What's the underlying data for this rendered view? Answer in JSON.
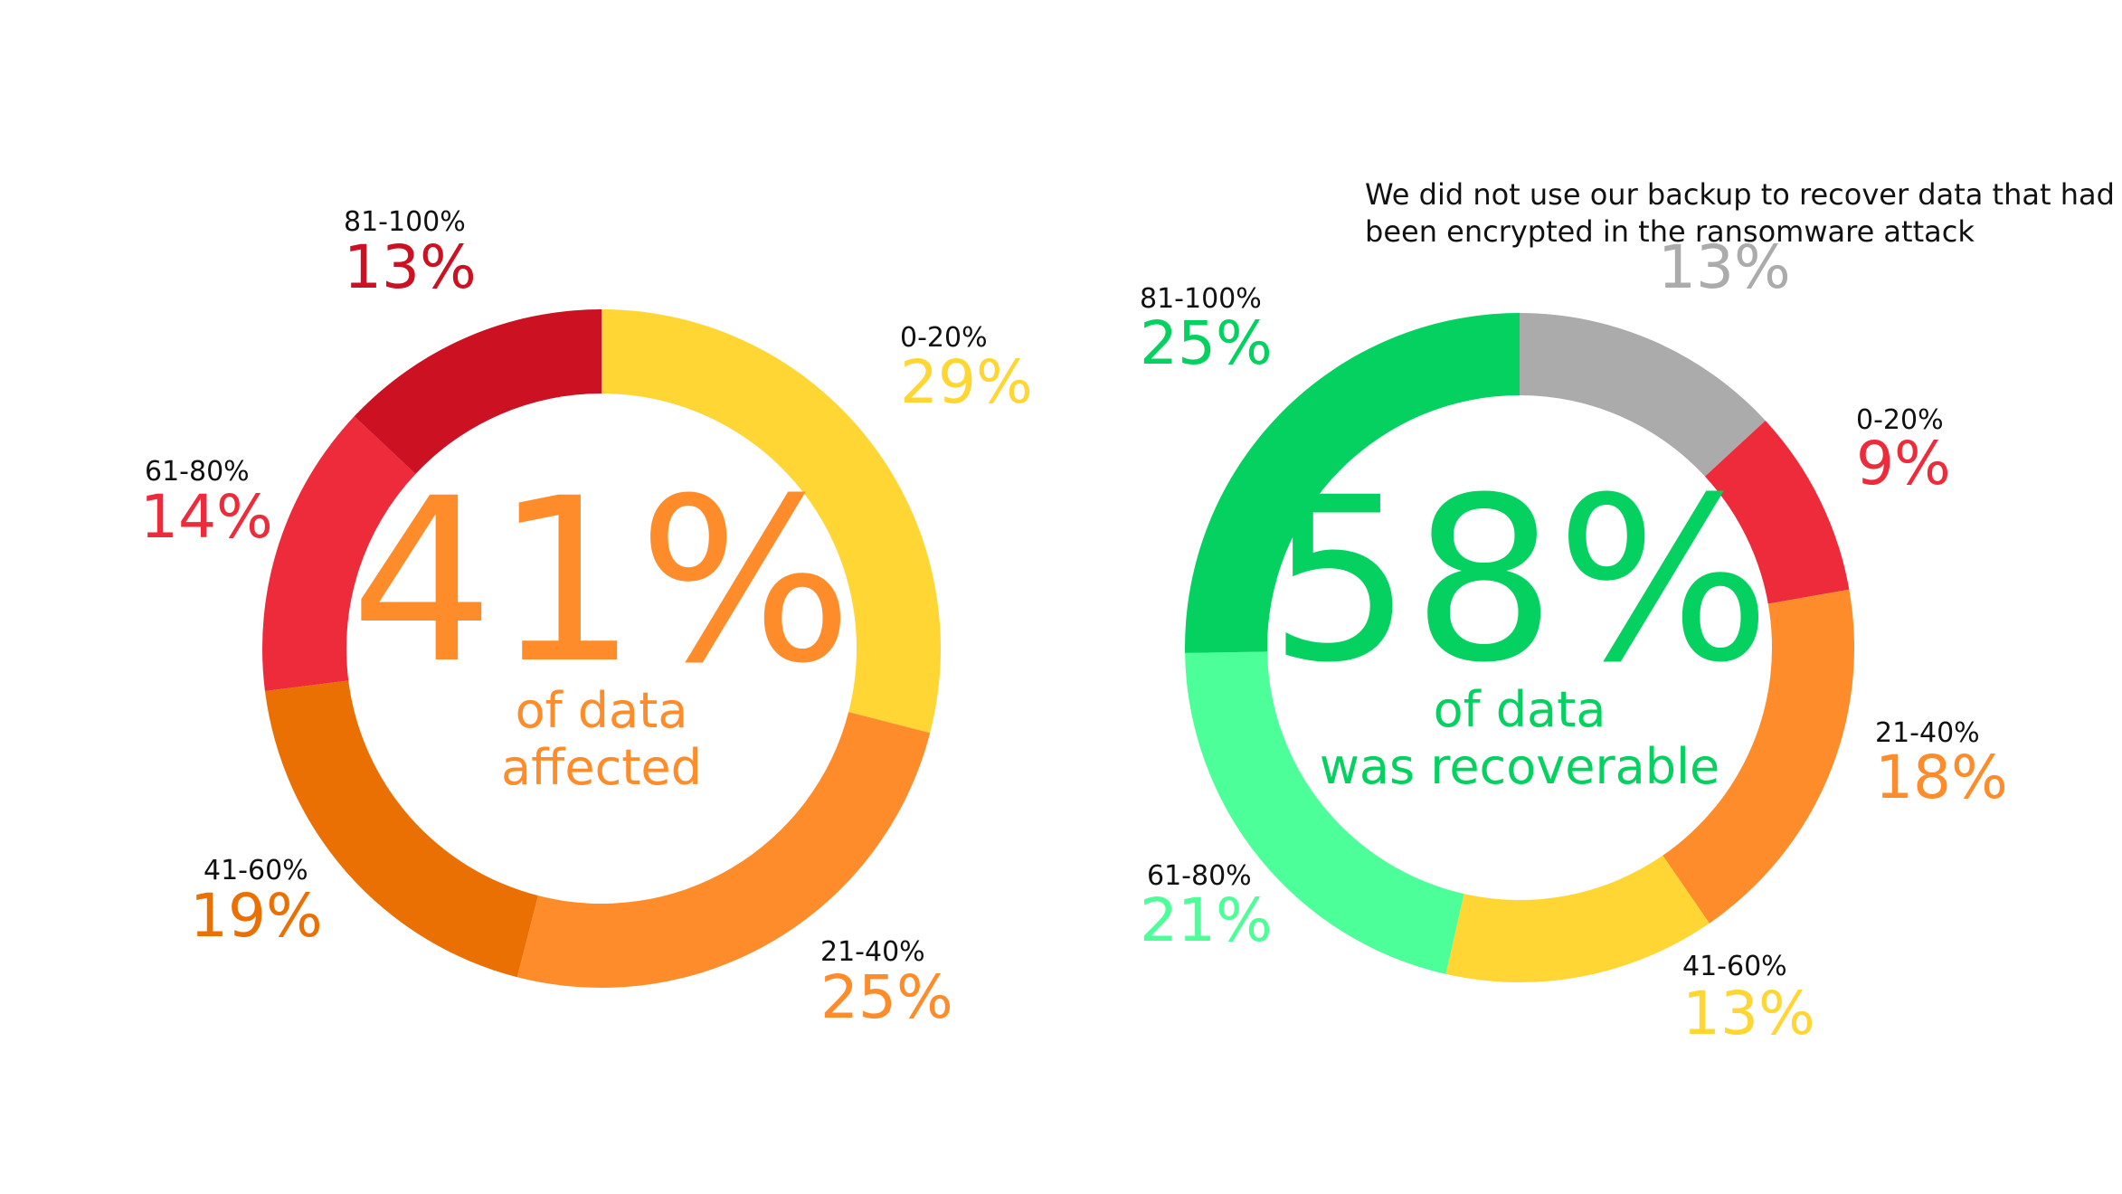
{
  "chart_data": [
    {
      "type": "donut",
      "center_value": "41%",
      "center_text": [
        "of data",
        "affected"
      ],
      "center_color": "#FF8C2A",
      "categories": [
        "0-20%",
        "21-40%",
        "41-60%",
        "61-80%",
        "81-100%"
      ],
      "values": [
        29,
        25,
        19,
        14,
        13
      ],
      "value_labels": [
        "29%",
        "25%",
        "19%",
        "14%",
        "13%"
      ],
      "colors": [
        "#FFD633",
        "#FF8C2A",
        "#EB7004",
        "#EE2B3B",
        "#CC1122"
      ]
    },
    {
      "type": "donut",
      "center_value": "58%",
      "center_text": [
        "of data",
        "was recoverable"
      ],
      "center_color": "#05D160",
      "categories": [
        "We did not use our backup to recover data that had been encrypted in the ransomware attack",
        "0-20%",
        "21-40%",
        "41-60%",
        "61-80%",
        "81-100%"
      ],
      "values": [
        13,
        9,
        18,
        13,
        21,
        25
      ],
      "value_labels": [
        "13%",
        "9%",
        "18%",
        "13%",
        "21%",
        "25%"
      ],
      "colors": [
        "#ABABAB",
        "#EE2B3B",
        "#FF8C2A",
        "#FFD633",
        "#4DFF98",
        "#05D160"
      ]
    }
  ]
}
